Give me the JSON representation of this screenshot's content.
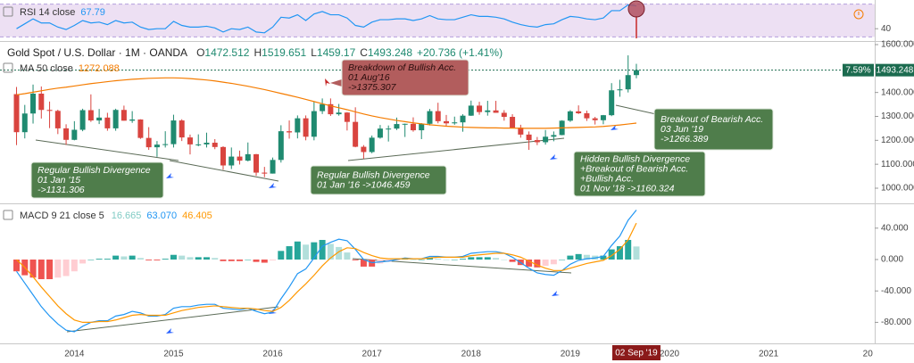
{
  "x_axis": {
    "xlim": [
      2013.25,
      2022.07
    ],
    "xticks": [
      2014,
      2015,
      2016,
      2017,
      2018,
      2019,
      2020,
      2021,
      {
        "value": 2022,
        "label": "20"
      }
    ],
    "crosshair_label": "02 Sep '19"
  },
  "chart_data": [
    {
      "type": "line",
      "title": "RSI 14 close",
      "color": "#2196f3",
      "values": [
        40,
        46,
        52,
        47,
        47,
        42,
        39,
        44,
        50,
        47,
        48,
        45,
        50,
        47,
        48,
        42,
        39,
        40,
        40,
        49,
        44,
        42,
        42,
        43,
        41,
        36,
        40,
        39,
        42,
        36,
        35,
        42,
        54,
        53,
        57,
        50,
        58,
        61,
        57,
        57,
        53,
        44,
        42,
        48,
        51,
        51,
        52,
        52,
        50,
        52,
        56,
        52,
        51,
        51,
        54,
        57,
        55,
        55,
        54,
        52,
        48,
        45,
        43,
        42,
        45,
        46,
        51,
        55,
        54,
        52,
        51,
        53,
        62,
        62,
        69,
        67.79
      ],
      "ylim": [
        25,
        75
      ],
      "yticks": [
        40
      ],
      "band": [
        30,
        70
      ],
      "band_color": "#ede0f3"
    },
    {
      "type": "candlestick",
      "title": "Gold Spot / U.S. Dollar · 1M · OANDA",
      "ohlc_labels": [
        "O",
        "H",
        "L",
        "C"
      ],
      "change": "+20.736 (+1.41%)",
      "x": [
        "2013-06",
        "2013-07",
        "2013-08",
        "2013-09",
        "2013-10",
        "2013-11",
        "2013-12",
        "2014-01",
        "2014-02",
        "2014-03",
        "2014-04",
        "2014-05",
        "2014-06",
        "2014-07",
        "2014-08",
        "2014-09",
        "2014-10",
        "2014-11",
        "2014-12",
        "2015-01",
        "2015-02",
        "2015-03",
        "2015-04",
        "2015-05",
        "2015-06",
        "2015-07",
        "2015-08",
        "2015-09",
        "2015-10",
        "2015-11",
        "2015-12",
        "2016-01",
        "2016-02",
        "2016-03",
        "2016-04",
        "2016-05",
        "2016-06",
        "2016-07",
        "2016-08",
        "2016-09",
        "2016-10",
        "2016-11",
        "2016-12",
        "2017-01",
        "2017-02",
        "2017-03",
        "2017-04",
        "2017-05",
        "2017-06",
        "2017-07",
        "2017-08",
        "2017-09",
        "2017-10",
        "2017-11",
        "2017-12",
        "2018-01",
        "2018-02",
        "2018-03",
        "2018-04",
        "2018-05",
        "2018-06",
        "2018-07",
        "2018-08",
        "2018-09",
        "2018-10",
        "2018-11",
        "2018-12",
        "2019-01",
        "2019-02",
        "2019-03",
        "2019-04",
        "2019-05",
        "2019-06",
        "2019-07",
        "2019-08",
        "2019-09"
      ],
      "candles": [
        [
          1393,
          1423,
          1180,
          1234
        ],
        [
          1234,
          1348,
          1208,
          1312
        ],
        [
          1312,
          1433,
          1270,
          1395
        ],
        [
          1395,
          1425,
          1291,
          1327
        ],
        [
          1327,
          1362,
          1251,
          1323
        ],
        [
          1323,
          1328,
          1226,
          1250
        ],
        [
          1250,
          1267,
          1181,
          1202
        ],
        [
          1202,
          1280,
          1200,
          1244
        ],
        [
          1244,
          1332,
          1238,
          1326
        ],
        [
          1326,
          1392,
          1277,
          1283
        ],
        [
          1283,
          1331,
          1268,
          1295
        ],
        [
          1295,
          1315,
          1240,
          1250
        ],
        [
          1250,
          1332,
          1240,
          1327
        ],
        [
          1327,
          1345,
          1282,
          1282
        ],
        [
          1282,
          1322,
          1273,
          1287
        ],
        [
          1287,
          1288,
          1206,
          1210
        ],
        [
          1210,
          1255,
          1160,
          1171
        ],
        [
          1171,
          1197,
          1131,
          1182
        ],
        [
          1182,
          1238,
          1170,
          1184
        ],
        [
          1184,
          1307,
          1170,
          1283
        ],
        [
          1283,
          1288,
          1197,
          1212
        ],
        [
          1212,
          1224,
          1141,
          1183
        ],
        [
          1183,
          1225,
          1175,
          1183
        ],
        [
          1183,
          1232,
          1170,
          1190
        ],
        [
          1190,
          1205,
          1163,
          1172
        ],
        [
          1172,
          1175,
          1077,
          1095
        ],
        [
          1095,
          1170,
          1080,
          1132
        ],
        [
          1132,
          1157,
          1099,
          1115
        ],
        [
          1115,
          1191,
          1112,
          1142
        ],
        [
          1142,
          1143,
          1052,
          1065
        ],
        [
          1065,
          1089,
          1046,
          1061
        ],
        [
          1061,
          1128,
          1061,
          1118
        ],
        [
          1118,
          1263,
          1107,
          1238
        ],
        [
          1238,
          1283,
          1207,
          1233
        ],
        [
          1233,
          1304,
          1208,
          1292
        ],
        [
          1292,
          1304,
          1200,
          1215
        ],
        [
          1215,
          1362,
          1200,
          1322
        ],
        [
          1322,
          1375,
          1310,
          1351
        ],
        [
          1351,
          1375,
          1302,
          1309
        ],
        [
          1309,
          1352,
          1303,
          1316
        ],
        [
          1316,
          1318,
          1241,
          1277
        ],
        [
          1277,
          1338,
          1171,
          1173
        ],
        [
          1173,
          1180,
          1123,
          1151
        ],
        [
          1151,
          1220,
          1146,
          1211
        ],
        [
          1211,
          1264,
          1207,
          1249
        ],
        [
          1249,
          1262,
          1195,
          1249
        ],
        [
          1249,
          1295,
          1243,
          1268
        ],
        [
          1268,
          1270,
          1214,
          1269
        ],
        [
          1269,
          1296,
          1236,
          1242
        ],
        [
          1242,
          1272,
          1205,
          1269
        ],
        [
          1269,
          1331,
          1262,
          1322
        ],
        [
          1322,
          1357,
          1271,
          1280
        ],
        [
          1280,
          1306,
          1260,
          1271
        ],
        [
          1271,
          1299,
          1265,
          1275
        ],
        [
          1275,
          1309,
          1236,
          1303
        ],
        [
          1303,
          1366,
          1302,
          1345
        ],
        [
          1345,
          1361,
          1307,
          1318
        ],
        [
          1318,
          1365,
          1303,
          1325
        ],
        [
          1325,
          1365,
          1315,
          1315
        ],
        [
          1315,
          1326,
          1282,
          1298
        ],
        [
          1298,
          1309,
          1250,
          1253
        ],
        [
          1253,
          1265,
          1211,
          1224
        ],
        [
          1224,
          1237,
          1160,
          1201
        ],
        [
          1201,
          1214,
          1180,
          1192
        ],
        [
          1192,
          1243,
          1182,
          1215
        ],
        [
          1215,
          1237,
          1196,
          1222
        ],
        [
          1222,
          1284,
          1221,
          1282
        ],
        [
          1282,
          1326,
          1277,
          1321
        ],
        [
          1321,
          1346,
          1310,
          1313
        ],
        [
          1313,
          1324,
          1281,
          1292
        ],
        [
          1292,
          1298,
          1266,
          1284
        ],
        [
          1284,
          1306,
          1267,
          1305
        ],
        [
          1305,
          1439,
          1301,
          1409
        ],
        [
          1409,
          1453,
          1382,
          1413
        ],
        [
          1413,
          1555,
          1400,
          1472.512
        ],
        [
          1472.512,
          1519.651,
          1459.17,
          1493.248
        ]
      ],
      "up_color": "#1f8a70",
      "down_color": "#d9443f",
      "ma": {
        "title": "MA 50 close",
        "color": "#f57c00",
        "values": [
          1390,
          1395,
          1401,
          1407,
          1413,
          1418,
          1422,
          1427,
          1432,
          1437,
          1441,
          1445,
          1449,
          1452,
          1455,
          1457,
          1459,
          1460,
          1461,
          1461,
          1460,
          1458,
          1455,
          1452,
          1448,
          1443,
          1438,
          1432,
          1426,
          1419,
          1412,
          1404,
          1396,
          1388,
          1380,
          1371,
          1362,
          1353,
          1344,
          1336,
          1328,
          1319,
          1310,
          1302,
          1295,
          1289,
          1283,
          1278,
          1273,
          1269,
          1265,
          1262,
          1259,
          1257,
          1255,
          1254,
          1253,
          1252,
          1252,
          1251,
          1251,
          1250,
          1250,
          1250,
          1250,
          1251,
          1252,
          1253,
          1254,
          1255,
          1256,
          1258,
          1261,
          1264,
          1268,
          1272.088
        ]
      },
      "ylim": [
        936.6,
        1614.9
      ],
      "yticks": [
        {
          "value": 1000,
          "label": "1000.000"
        },
        {
          "value": 1100,
          "label": "1100.000"
        },
        {
          "value": 1200,
          "label": "1200.000"
        },
        {
          "value": 1300,
          "label": "1300.000"
        },
        {
          "value": 1400,
          "label": "1400.000"
        },
        {
          "value": 1500,
          "label": "1500.000"
        },
        {
          "value": 1600,
          "label": "1600.000"
        }
      ],
      "last_change_label": "7.59%",
      "last_price_color": "#1b6b4f",
      "annotations": [
        {
          "lines": [
            "Breakdown of Bullish Acc.",
            "01 Aug'16",
            "->1375.307"
          ],
          "fill": "#b25d5d",
          "text_color": "#2a0d0d"
        },
        {
          "lines": [
            "Regular Bullish Divergence",
            "01 Jan '15",
            "->1131.306"
          ],
          "fill": "#4f7d4b",
          "text_color": "#ffffff"
        },
        {
          "lines": [
            "Regular Bullish Divergence",
            "01 Jan '16 ->1046.459"
          ],
          "fill": "#4f7d4b",
          "text_color": "#ffffff"
        },
        {
          "lines": [
            "Hidden Bullish Divergence",
            "+Breakout of Bearish Acc.",
            "+Bullish Acc.",
            "01 Nov '18 ->1160.324"
          ],
          "fill": "#4f7d4b",
          "text_color": "#ffffff"
        },
        {
          "lines": [
            "Breakout of Bearish Acc.",
            "03 Jun '19",
            "->1266.389"
          ],
          "fill": "#4f7d4b",
          "text_color": "#ffffff"
        }
      ]
    },
    {
      "type": "macd",
      "title": "MACD 9 21 close 5",
      "histogram": {
        "colors": [
          "#26a69a",
          "#b2dfdb",
          "#ef5350",
          "#ffcdd2"
        ],
        "values": [
          -15,
          -20,
          -23,
          -25,
          -25,
          -23,
          -21,
          -15,
          -5,
          0,
          1,
          1,
          5,
          4,
          5,
          2,
          -1,
          -1,
          1,
          6,
          5,
          3,
          3,
          3,
          2,
          -2,
          -2,
          -2,
          0,
          -3,
          -4,
          -1,
          11,
          17,
          23,
          19,
          22,
          25,
          20,
          16,
          9,
          -1,
          -9,
          -9,
          -5,
          -3,
          -1,
          1,
          0,
          0,
          2,
          1,
          0,
          0,
          1,
          3,
          3,
          3,
          2,
          0,
          -3,
          -7,
          -9,
          -10,
          -8,
          -6,
          0,
          5,
          7,
          6,
          5,
          5,
          13,
          17,
          25,
          16.665
        ]
      },
      "macd": {
        "color": "#2196f3",
        "value_label": "63.070",
        "values": [
          -15,
          -30,
          -45,
          -60,
          -72,
          -82,
          -90,
          -92,
          -85,
          -80,
          -78,
          -78,
          -72,
          -70,
          -66,
          -68,
          -72,
          -72,
          -70,
          -62,
          -60,
          -60,
          -58,
          -57,
          -57,
          -62,
          -63,
          -64,
          -62,
          -66,
          -69,
          -67,
          -50,
          -35,
          -18,
          -12,
          2,
          17,
          22,
          26,
          24,
          13,
          0,
          -4,
          -3,
          -2,
          0,
          2,
          1,
          1,
          4,
          4,
          3,
          3,
          4,
          8,
          9,
          10,
          10,
          8,
          3,
          -4,
          -11,
          -17,
          -19,
          -20,
          -14,
          -6,
          -1,
          1,
          2,
          4,
          18,
          30,
          50,
          63.07
        ]
      },
      "signal": {
        "color": "#ff9800",
        "values": [
          0,
          -10,
          -22,
          -35,
          -47,
          -59,
          -69,
          -77,
          -80,
          -80,
          -79,
          -79,
          -77,
          -74,
          -71,
          -70,
          -71,
          -71,
          -71,
          -68,
          -65,
          -63,
          -61,
          -60,
          -59,
          -60,
          -61,
          -62,
          -62,
          -63,
          -65,
          -66,
          -61,
          -52,
          -41,
          -31,
          -20,
          -8,
          2,
          10,
          15,
          14,
          9,
          5,
          2,
          1,
          1,
          1,
          1,
          1,
          2,
          3,
          3,
          3,
          3,
          5,
          6,
          7,
          8,
          8,
          6,
          3,
          -2,
          -7,
          -11,
          -14,
          -14,
          -11,
          -8,
          -5,
          -3,
          -1,
          5,
          13,
          25,
          46.405
        ]
      },
      "ylim": [
        -106.8,
        71.6
      ],
      "yticks": [
        {
          "value": -80,
          "label": "-80.000"
        },
        {
          "value": -40,
          "label": "-40.000"
        },
        {
          "value": 0,
          "label": "0.000"
        },
        {
          "value": 40,
          "label": "40.000"
        }
      ]
    }
  ]
}
